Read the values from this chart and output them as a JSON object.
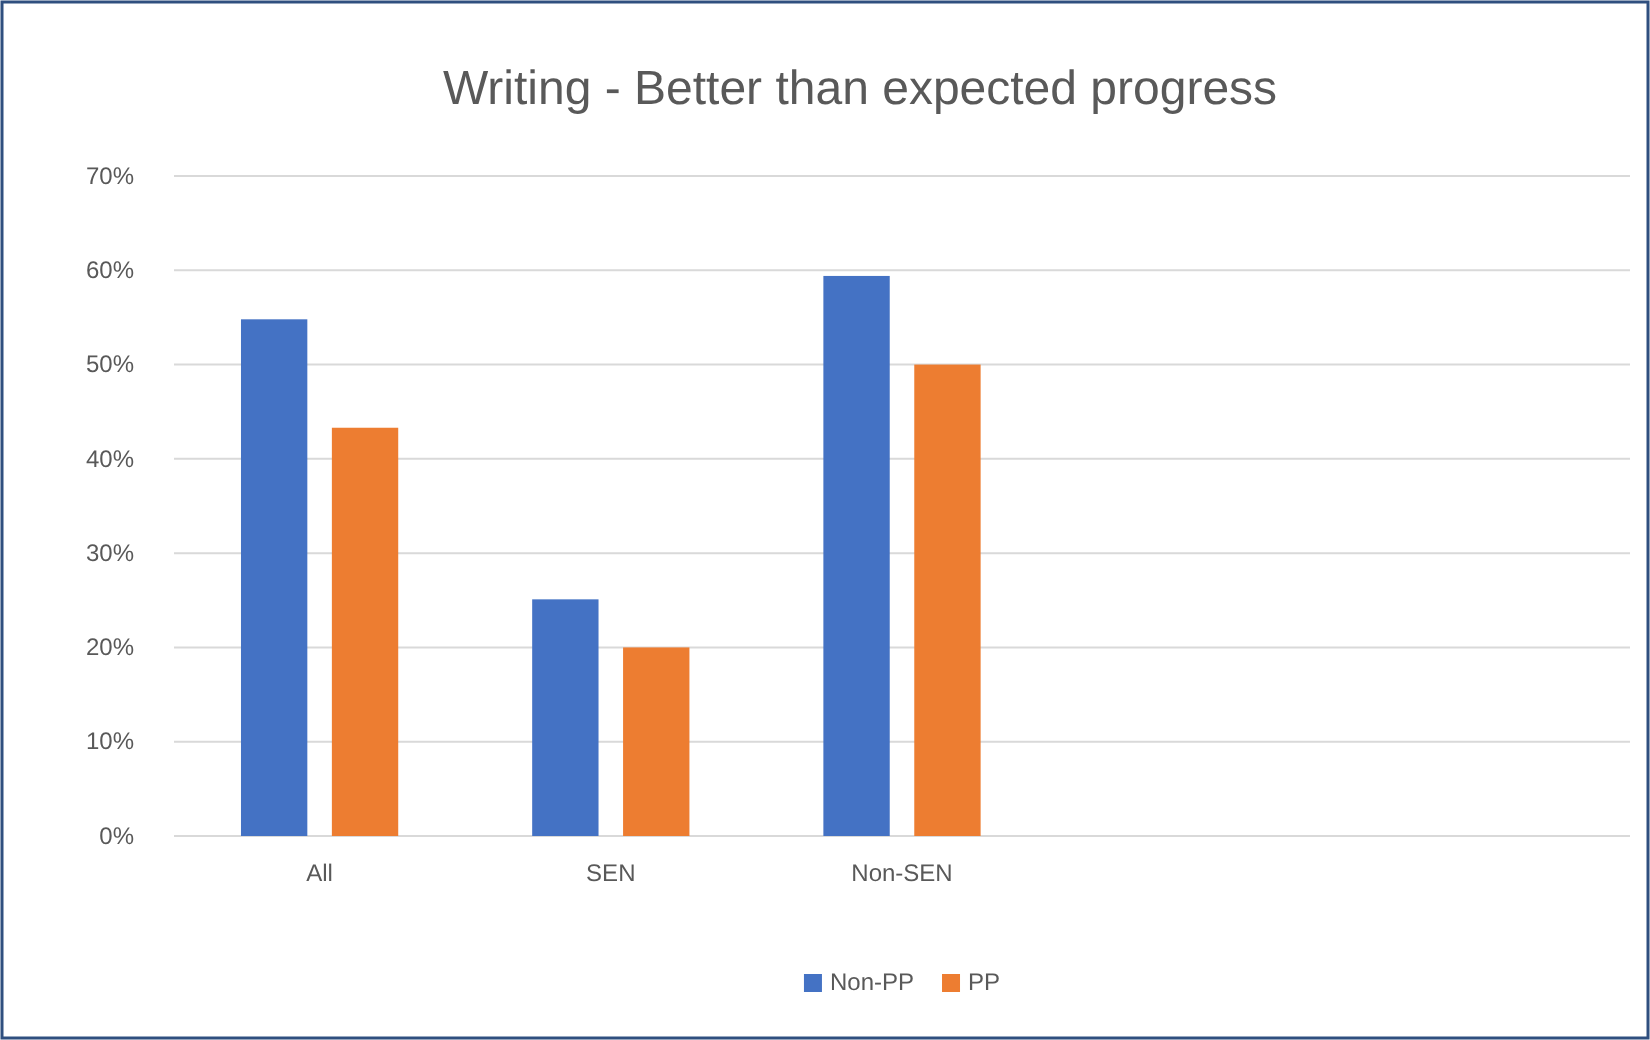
{
  "chart_data": {
    "type": "bar",
    "title": "Writing - Better than expected progress",
    "categories": [
      "All",
      "SEN",
      "Non-SEN",
      null,
      null
    ],
    "series": [
      {
        "name": "Non-PP",
        "color": "#4472c4",
        "values": [
          54.8,
          25.1,
          59.4,
          null,
          null
        ]
      },
      {
        "name": "PP",
        "color": "#ed7d31",
        "values": [
          43.3,
          20.0,
          50.0,
          null,
          null
        ]
      }
    ],
    "ylim": [
      0,
      70
    ],
    "yticks": [
      {
        "value": 0,
        "label": "0%"
      },
      {
        "value": 10,
        "label": "10%"
      },
      {
        "value": 20,
        "label": "20%"
      },
      {
        "value": 30,
        "label": "30%"
      },
      {
        "value": 40,
        "label": "40%"
      },
      {
        "value": 50,
        "label": "50%"
      },
      {
        "value": 60,
        "label": "60%"
      },
      {
        "value": 70,
        "label": "70%"
      }
    ],
    "grid": "y",
    "legend": "bottom"
  }
}
